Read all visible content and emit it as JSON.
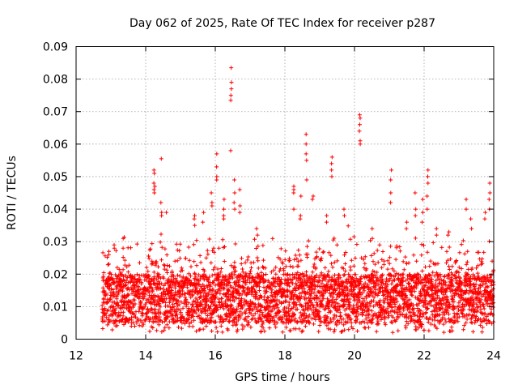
{
  "chart_data": {
    "type": "scatter",
    "title": "Day 062 of 2025, Rate Of TEC Index for receiver p287",
    "xlabel": "GPS time / hours",
    "ylabel": "ROTI / TECUs",
    "xlim": [
      12,
      24
    ],
    "ylim": [
      0,
      0.09
    ],
    "x_ticks": [
      12,
      14,
      16,
      18,
      20,
      22,
      24
    ],
    "x_tick_labels": [
      "12",
      "14",
      "16",
      "18",
      "20",
      "22",
      "24"
    ],
    "y_ticks": [
      0,
      0.01,
      0.02,
      0.03,
      0.04,
      0.05,
      0.06,
      0.07,
      0.08,
      0.09
    ],
    "y_tick_labels": [
      "0",
      "0.01",
      "0.02",
      "0.03",
      "0.04",
      "0.05",
      "0.06",
      "0.07",
      "0.08",
      "0.09"
    ],
    "grid": true,
    "marker": "+",
    "series_color": "#ff0000",
    "background_band": {
      "x_start": 12.75,
      "x_end": 24,
      "typical_low": 0.005,
      "typical_high": 0.02,
      "sampling_step_hours": 0.012
    },
    "spikes": [
      {
        "x": 12.95,
        "values": [
          0.026,
          0.027
        ]
      },
      {
        "x": 13.1,
        "values": [
          0.028,
          0.029
        ]
      },
      {
        "x": 13.35,
        "values": [
          0.031,
          0.028
        ]
      },
      {
        "x": 14.25,
        "values": [
          0.052,
          0.051,
          0.048,
          0.047,
          0.046,
          0.045
        ]
      },
      {
        "x": 14.45,
        "values": [
          0.0555,
          0.042,
          0.039,
          0.038
        ]
      },
      {
        "x": 14.6,
        "values": [
          0.039
        ]
      },
      {
        "x": 15.4,
        "values": [
          0.037,
          0.038,
          0.035
        ]
      },
      {
        "x": 15.65,
        "values": [
          0.036,
          0.039
        ]
      },
      {
        "x": 15.9,
        "values": [
          0.045,
          0.042,
          0.041
        ]
      },
      {
        "x": 16.05,
        "values": [
          0.057,
          0.053,
          0.05,
          0.049
        ]
      },
      {
        "x": 16.25,
        "values": [
          0.043,
          0.04,
          0.038,
          0.037
        ]
      },
      {
        "x": 16.45,
        "values": [
          0.0835,
          0.079,
          0.077,
          0.075,
          0.0735,
          0.058
        ]
      },
      {
        "x": 16.55,
        "values": [
          0.049,
          0.045,
          0.042,
          0.04
        ]
      },
      {
        "x": 16.7,
        "values": [
          0.046,
          0.041,
          0.039
        ]
      },
      {
        "x": 17.2,
        "values": [
          0.034,
          0.032
        ]
      },
      {
        "x": 18.25,
        "values": [
          0.047,
          0.046,
          0.045,
          0.04
        ]
      },
      {
        "x": 18.45,
        "values": [
          0.044,
          0.038,
          0.037
        ]
      },
      {
        "x": 18.62,
        "values": [
          0.063,
          0.06,
          0.057,
          0.055,
          0.049
        ]
      },
      {
        "x": 18.8,
        "values": [
          0.044,
          0.043
        ]
      },
      {
        "x": 19.2,
        "values": [
          0.038,
          0.036
        ]
      },
      {
        "x": 19.35,
        "values": [
          0.056,
          0.054,
          0.052,
          0.05
        ]
      },
      {
        "x": 19.7,
        "values": [
          0.04,
          0.038
        ]
      },
      {
        "x": 20.15,
        "values": [
          0.069,
          0.068,
          0.066,
          0.064,
          0.061,
          0.06
        ]
      },
      {
        "x": 20.5,
        "values": [
          0.034,
          0.031
        ]
      },
      {
        "x": 21.05,
        "values": [
          0.052,
          0.049,
          0.045,
          0.042
        ]
      },
      {
        "x": 21.5,
        "values": [
          0.036,
          0.034
        ]
      },
      {
        "x": 21.75,
        "values": [
          0.045,
          0.04,
          0.038
        ]
      },
      {
        "x": 21.95,
        "values": [
          0.043,
          0.039,
          0.036
        ]
      },
      {
        "x": 22.1,
        "values": [
          0.052,
          0.05,
          0.048,
          0.044,
          0.04
        ]
      },
      {
        "x": 22.35,
        "values": [
          0.034,
          0.032
        ]
      },
      {
        "x": 22.7,
        "values": [
          0.033,
          0.032
        ]
      },
      {
        "x": 23.2,
        "values": [
          0.043,
          0.04
        ]
      },
      {
        "x": 23.35,
        "values": [
          0.037,
          0.034
        ]
      },
      {
        "x": 23.75,
        "values": [
          0.039,
          0.037
        ]
      },
      {
        "x": 23.88,
        "values": [
          0.048,
          0.045,
          0.043,
          0.04
        ]
      }
    ]
  }
}
